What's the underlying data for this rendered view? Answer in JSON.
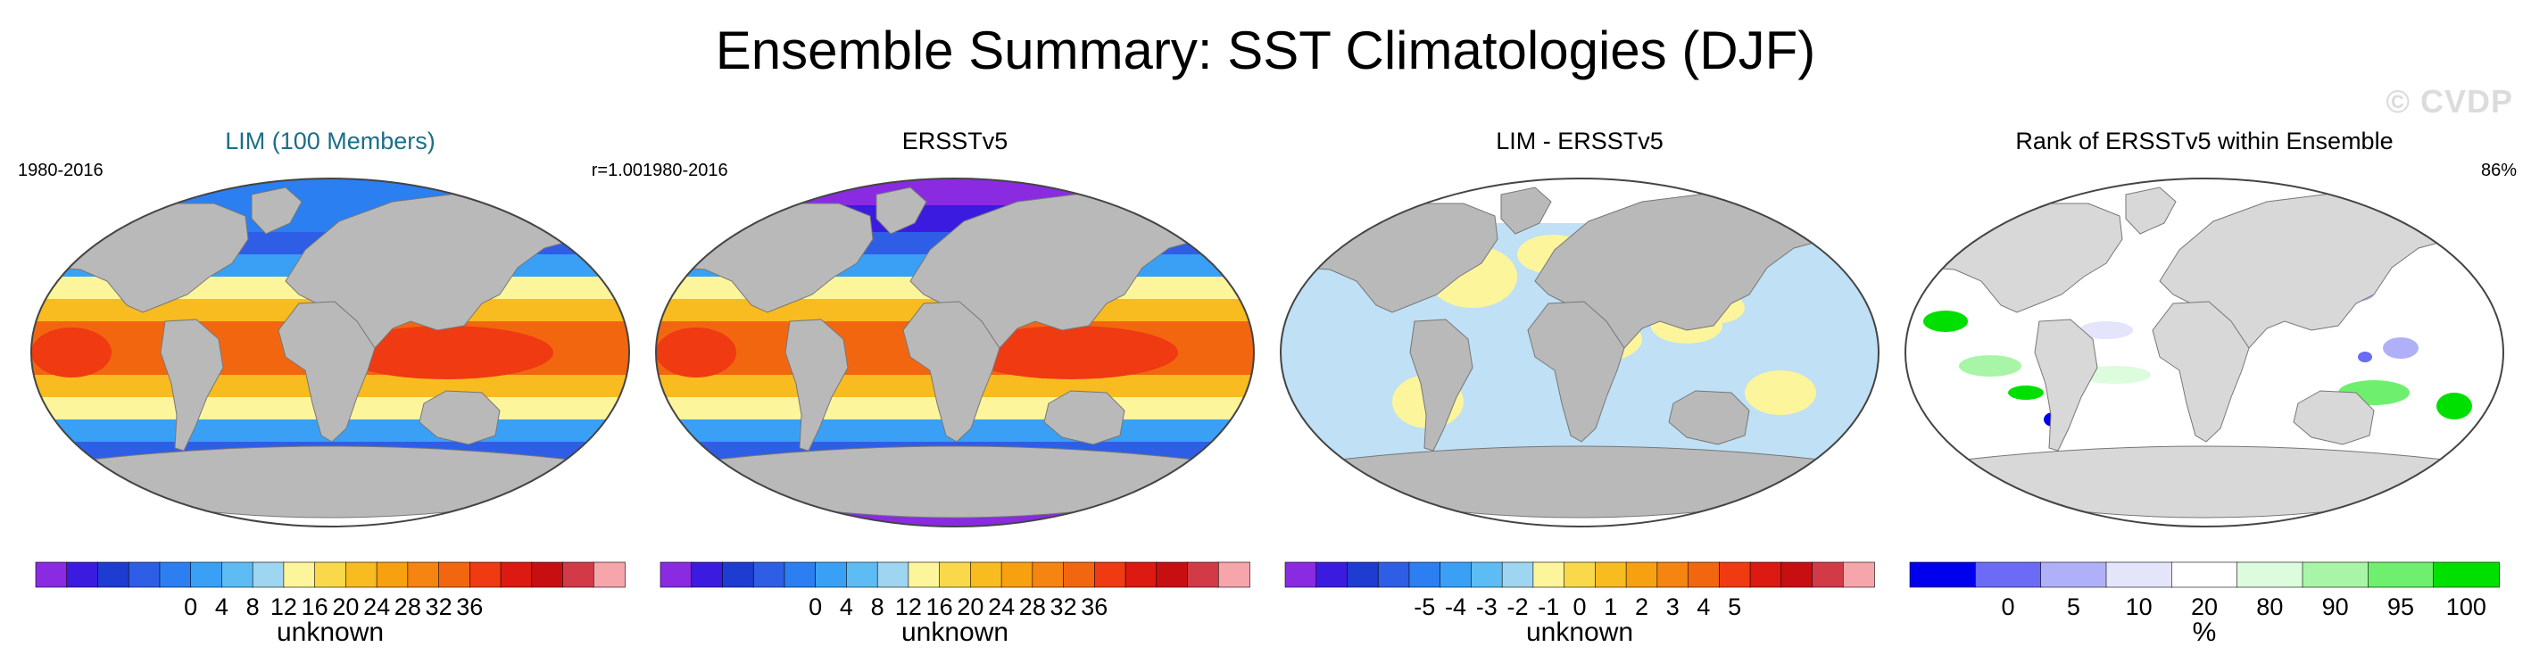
{
  "title": "Ensemble Summary: SST Climatologies (DJF)",
  "watermark": "© CVDP",
  "panels": [
    {
      "title": "LIM (100 Members)",
      "left_label": "1980-2016",
      "right_label": "r=1.00",
      "field": "sst_lim",
      "colorbar": {
        "colors": [
          "#8a2be2",
          "#3c1be0",
          "#1e3cd2",
          "#2e5ee6",
          "#2b7ff0",
          "#3aa0f5",
          "#5ebcf5",
          "#9ed5f0",
          "#fdf59c",
          "#f9d84a",
          "#f8bb20",
          "#f7a010",
          "#f58410",
          "#f36610",
          "#ef3a12",
          "#dc1a12",
          "#c70f12",
          "#d23a48",
          "#f6a5aa"
        ],
        "ticks": [
          "0",
          "4",
          "8",
          "12",
          "16",
          "20",
          "24",
          "28",
          "32",
          "36"
        ],
        "units": "unknown"
      }
    },
    {
      "title": "ERSSTv5",
      "left_label": "1980-2016",
      "right_label": "",
      "field": "sst_obs",
      "colorbar": {
        "colors": [
          "#8a2be2",
          "#3c1be0",
          "#1e3cd2",
          "#2e5ee6",
          "#2b7ff0",
          "#3aa0f5",
          "#5ebcf5",
          "#9ed5f0",
          "#fdf59c",
          "#f9d84a",
          "#f8bb20",
          "#f7a010",
          "#f58410",
          "#f36610",
          "#ef3a12",
          "#dc1a12",
          "#c70f12",
          "#d23a48",
          "#f6a5aa"
        ],
        "ticks": [
          "0",
          "4",
          "8",
          "12",
          "16",
          "20",
          "24",
          "28",
          "32",
          "36"
        ],
        "units": "unknown"
      }
    },
    {
      "title": "LIM - ERSSTv5",
      "left_label": "",
      "right_label": "",
      "field": "difference",
      "colorbar": {
        "colors": [
          "#8a2be2",
          "#3c1be0",
          "#1e3cd2",
          "#2e5ee6",
          "#2b7ff0",
          "#3aa0f5",
          "#5ebcf5",
          "#9ed5f0",
          "#fdf59c",
          "#f9d84a",
          "#f8bb20",
          "#f7a010",
          "#f58410",
          "#f36610",
          "#ef3a12",
          "#dc1a12",
          "#c70f12",
          "#d23a48",
          "#f6a5aa"
        ],
        "ticks": [
          "-5",
          "-4",
          "-3",
          "-2",
          "-1",
          "0",
          "1",
          "2",
          "3",
          "4",
          "5"
        ],
        "units": "unknown"
      }
    },
    {
      "title": "Rank of ERSSTv5 within Ensemble",
      "left_label": "",
      "right_label": "86%",
      "field": "rank",
      "colorbar": {
        "colors": [
          "#0000ee",
          "#6b6bf5",
          "#b0b0f8",
          "#e4e4fb",
          "#ffffff",
          "#ddfbdd",
          "#a8f5a8",
          "#6ef06e",
          "#00e000"
        ],
        "ticks": [
          "0",
          "5",
          "10",
          "20",
          "80",
          "90",
          "95",
          "100"
        ],
        "units": "%"
      }
    }
  ],
  "colors": {
    "land": "#b9b9b9",
    "land_light": "#d8d8d8",
    "map_border": "#444444"
  }
}
